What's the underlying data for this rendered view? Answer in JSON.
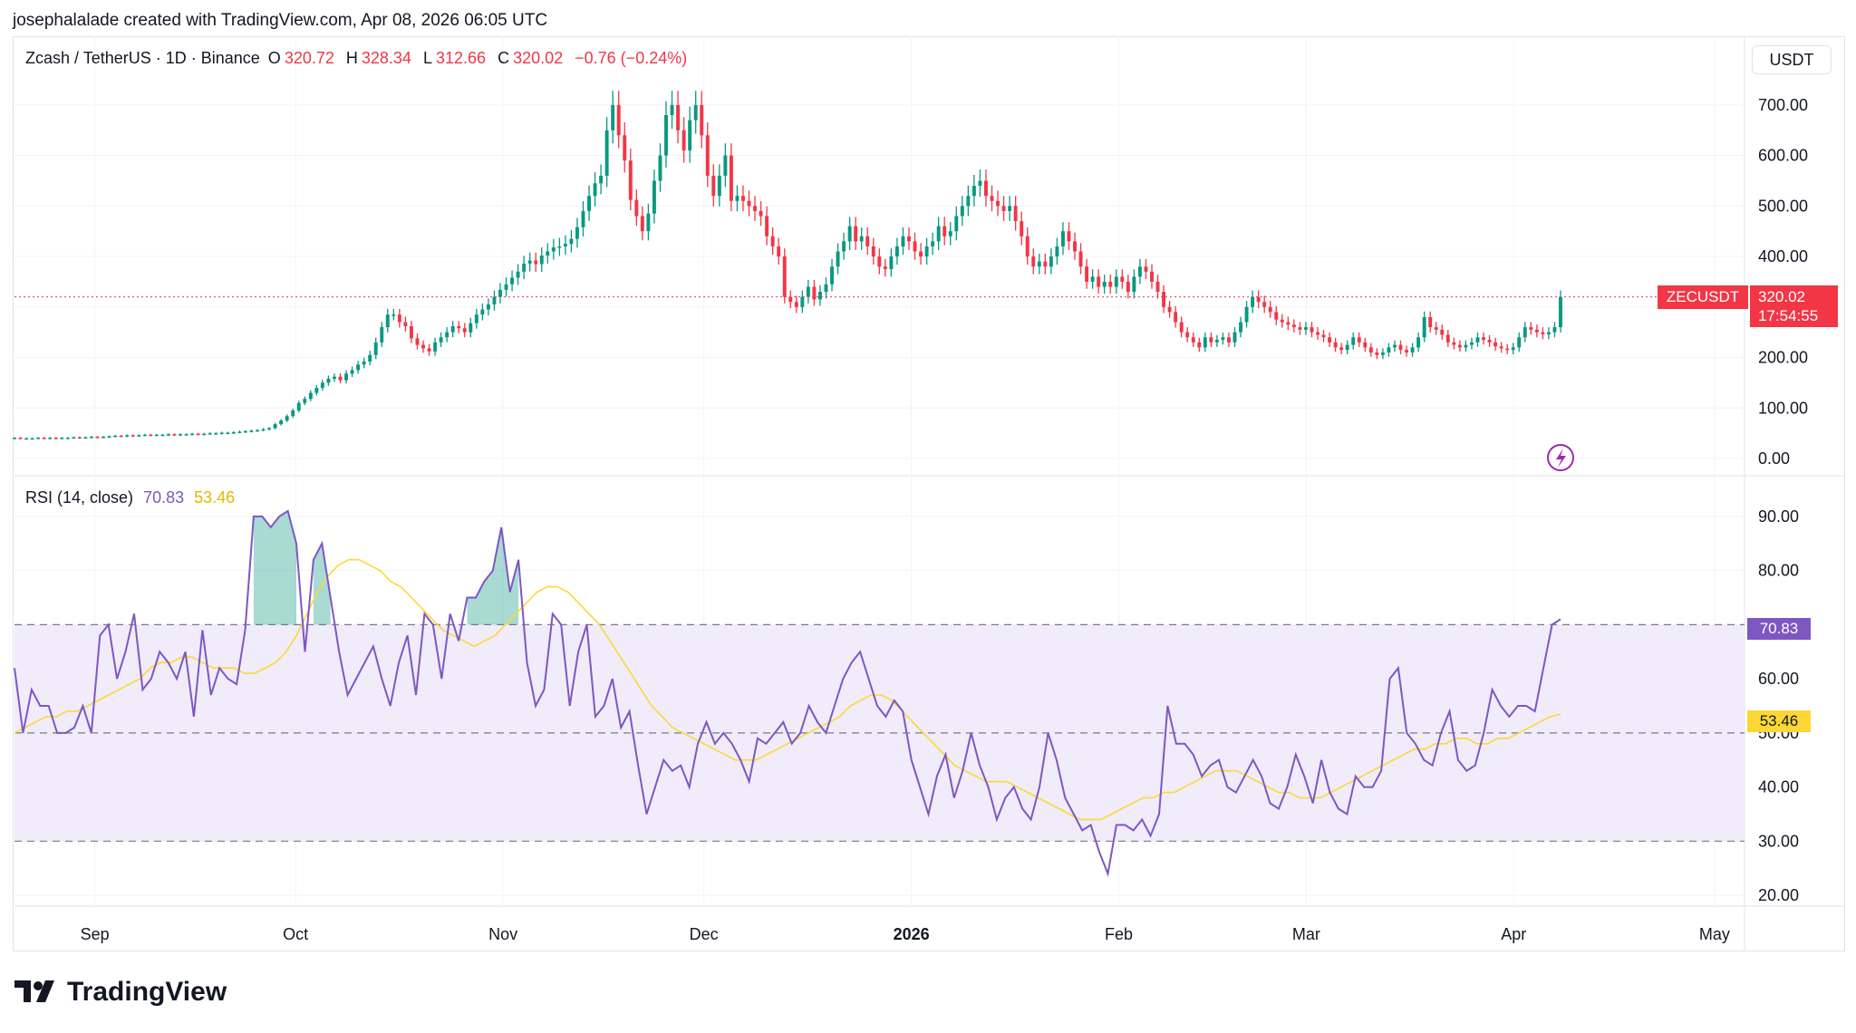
{
  "header": {
    "created_by": "josephalalade created with TradingView.com, Apr 08, 2026 06:05 UTC"
  },
  "legend": {
    "symbol": "Zcash / TetherUS · 1D · Binance",
    "o_label": "O",
    "o_value": "320.72",
    "h_label": "H",
    "h_value": "328.34",
    "l_label": "L",
    "l_value": "312.66",
    "c_label": "C",
    "c_value": "320.02",
    "change": "−0.76 (−0.24%)"
  },
  "currency_button": "USDT",
  "price_tag": {
    "symbol": "ZECUSDT",
    "price": "320.02",
    "countdown": "17:54:55"
  },
  "rsi": {
    "label": "RSI (14, close)",
    "value": "70.83",
    "ma_value": "53.46"
  },
  "footer": {
    "brand": "TradingView"
  },
  "colors": {
    "up": "#089981",
    "down": "#f23645",
    "rsi": "#7e57c2",
    "rsi_ma": "#fdd835",
    "band": "#f0ecfa"
  },
  "chart_data": [
    {
      "type": "candlestick",
      "title": "Zcash / TetherUS · 1D · Binance",
      "y_ticks": [
        "700.00",
        "600.00",
        "500.00",
        "400.00",
        "300.00",
        "200.00",
        "100.00",
        "0.00"
      ],
      "ylim": [
        0,
        750
      ],
      "x_ticks": [
        "Sep",
        "Oct",
        "Nov",
        "Dec",
        "2026",
        "Feb",
        "Mar",
        "Apr",
        "May"
      ],
      "date_range": [
        "2025-08-20",
        "2026-04-08"
      ],
      "last_close": 320.02,
      "close": [
        41,
        40,
        40,
        40,
        41,
        40,
        41,
        40,
        41,
        41,
        42,
        41,
        42,
        43,
        42,
        43,
        44,
        45,
        44,
        46,
        45,
        46,
        47,
        46,
        47,
        47,
        48,
        47,
        48,
        48,
        49,
        48,
        49,
        50,
        50,
        51,
        51,
        52,
        53,
        54,
        55,
        56,
        58,
        60,
        68,
        75,
        84,
        95,
        110,
        118,
        130,
        140,
        150,
        158,
        162,
        155,
        168,
        175,
        186,
        192,
        205,
        230,
        260,
        285,
        285,
        270,
        262,
        238,
        225,
        218,
        212,
        230,
        240,
        250,
        262,
        258,
        250,
        268,
        285,
        295,
        305,
        320,
        334,
        345,
        358,
        370,
        386,
        392,
        385,
        402,
        410,
        418,
        420,
        425,
        435,
        458,
        490,
        520,
        545,
        560,
        650,
        700,
        640,
        590,
        512,
        480,
        450,
        485,
        550,
        600,
        680,
        700,
        650,
        610,
        670,
        700,
        640,
        560,
        520,
        560,
        600,
        510,
        520,
        510,
        500,
        490,
        480,
        440,
        420,
        400,
        320,
        310,
        300,
        320,
        340,
        315,
        330,
        345,
        380,
        410,
        430,
        460,
        430,
        440,
        420,
        400,
        380,
        375,
        400,
        420,
        440,
        430,
        410,
        400,
        420,
        430,
        460,
        440,
        450,
        480,
        500,
        520,
        540,
        550,
        520,
        510,
        500,
        490,
        500,
        470,
        440,
        400,
        380,
        390,
        380,
        400,
        420,
        450,
        430,
        410,
        380,
        350,
        360,
        340,
        350,
        340,
        360,
        350,
        330,
        360,
        380,
        370,
        350,
        330,
        300,
        290,
        270,
        250,
        240,
        230,
        220,
        240,
        230,
        235,
        240,
        230,
        250,
        270,
        300,
        320,
        310,
        300,
        290,
        275,
        270,
        265,
        260,
        255,
        260,
        250,
        245,
        240,
        230,
        220,
        215,
        225,
        240,
        230,
        220,
        210,
        205,
        210,
        220,
        225,
        215,
        210,
        220,
        240,
        280,
        260,
        255,
        245,
        230,
        225,
        220,
        225,
        230,
        240,
        235,
        230,
        222,
        218,
        215,
        220,
        240,
        260,
        255,
        250,
        246,
        250,
        260,
        320
      ]
    },
    {
      "type": "line",
      "title": "RSI (14, close)",
      "y_ticks": [
        "90.00",
        "80.00",
        "70.00",
        "60.00",
        "50.00",
        "40.00",
        "30.00",
        "20.00"
      ],
      "ylim": [
        18,
        93
      ],
      "bands": [
        30,
        50,
        70
      ],
      "series": [
        {
          "name": "RSI",
          "values": [
            62,
            50,
            58,
            55,
            55,
            50,
            50,
            51,
            55,
            50,
            68,
            70,
            60,
            65,
            72,
            58,
            60,
            65,
            63,
            60,
            65,
            53,
            69,
            57,
            62,
            60,
            59,
            69,
            90,
            90,
            88,
            90,
            91,
            85,
            65,
            82,
            85,
            75,
            65,
            57,
            60,
            63,
            66,
            60,
            55,
            63,
            68,
            57,
            72,
            70,
            60,
            72,
            67,
            75,
            75,
            78,
            80,
            88,
            76,
            82,
            63,
            55,
            58,
            72,
            70,
            55,
            65,
            70,
            53,
            55,
            60,
            51,
            54,
            44,
            35,
            40,
            45,
            43,
            44,
            40,
            48,
            52,
            48,
            50,
            48,
            45,
            41,
            49,
            48,
            50,
            52,
            48,
            50,
            55,
            52,
            50,
            55,
            60,
            63,
            65,
            60,
            55,
            53,
            56,
            54,
            45,
            40,
            35,
            42,
            46,
            38,
            43,
            50,
            44,
            40,
            34,
            38,
            40,
            36,
            34,
            40,
            50,
            45,
            38,
            35,
            32,
            33,
            28,
            24,
            33,
            33,
            32,
            34,
            31,
            35,
            55,
            48,
            48,
            46,
            42,
            44,
            45,
            40,
            39,
            42,
            45,
            42,
            37,
            36,
            40,
            46,
            42,
            37,
            45,
            39,
            36,
            35,
            42,
            40,
            40,
            43,
            60,
            62,
            50,
            48,
            45,
            44,
            50,
            54,
            45,
            43,
            44,
            50,
            58,
            55,
            53,
            55,
            55,
            54,
            62,
            70,
            71
          ]
        },
        {
          "name": "MA",
          "values": [
            50,
            51,
            52,
            53,
            53,
            54,
            54,
            55,
            56,
            57,
            58,
            59,
            60,
            62,
            63,
            63,
            64,
            64,
            63,
            62,
            62,
            62,
            61,
            61,
            62,
            63,
            65,
            68,
            72,
            76,
            79,
            81,
            82,
            82,
            81,
            80,
            78,
            77,
            75,
            73,
            71,
            69,
            68,
            67,
            66,
            67,
            68,
            70,
            72,
            74,
            76,
            77,
            77,
            76,
            74,
            72,
            70,
            67,
            64,
            61,
            58,
            55,
            53,
            51,
            50,
            49,
            48,
            47,
            46,
            45,
            45,
            45,
            46,
            47,
            48,
            49,
            50,
            51,
            52,
            53,
            55,
            56,
            57,
            57,
            56,
            54,
            52,
            50,
            48,
            46,
            44,
            43,
            42,
            41,
            41,
            41,
            40,
            39,
            38,
            37,
            36,
            35,
            34,
            34,
            34,
            35,
            36,
            37,
            38,
            38,
            39,
            39,
            40,
            41,
            42,
            43,
            43,
            43,
            42,
            41,
            40,
            39,
            39,
            38,
            38,
            38,
            39,
            40,
            41,
            42,
            43,
            44,
            45,
            46,
            47,
            47,
            48,
            48,
            49,
            49,
            48,
            48,
            49,
            49,
            50,
            51,
            52,
            53,
            53.46
          ]
        }
      ]
    }
  ]
}
